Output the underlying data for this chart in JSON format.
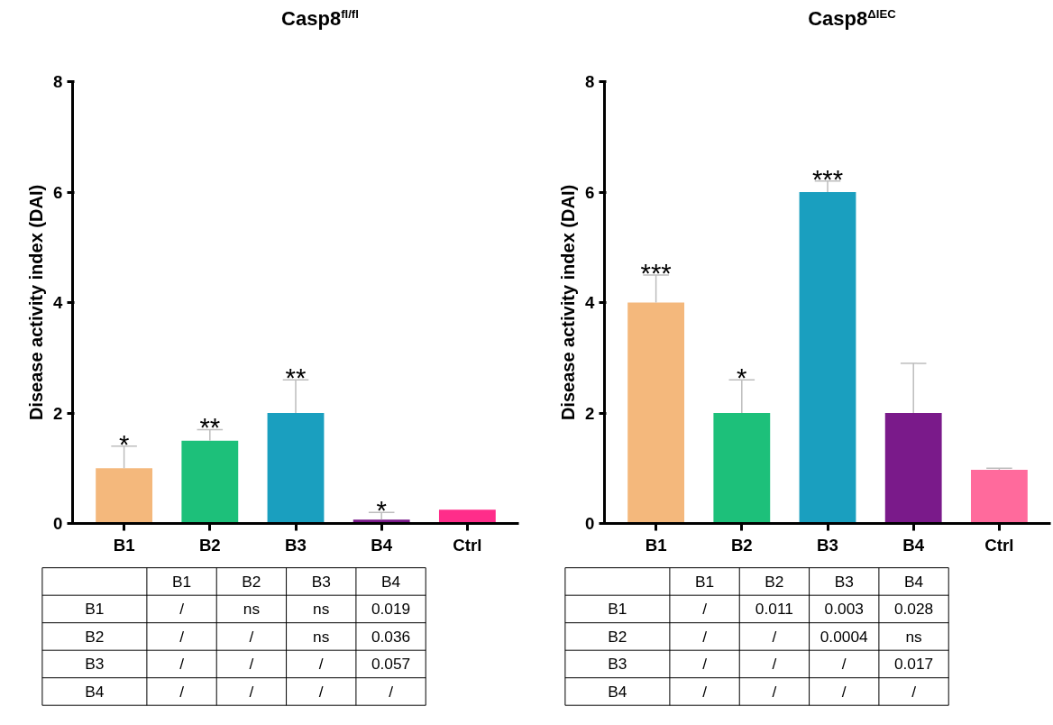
{
  "chart_data": [
    {
      "type": "bar",
      "title": "Casp8$^{fl/fl}$",
      "ylabel": "Disease activity index (DAI)",
      "categories": [
        "B1",
        "B2",
        "B3",
        "B4",
        "Ctrl"
      ],
      "values": [
        1.0,
        1.5,
        2.0,
        0.07,
        0.25
      ],
      "colors": [
        "#f4b87c",
        "#1dc07a",
        "#1a9fbf",
        "#7a1a8a",
        "#ff2d8a"
      ],
      "errors": [
        [
          1.0,
          1.4
        ],
        [
          1.5,
          1.7
        ],
        [
          2.0,
          2.6
        ],
        [
          0.07,
          0.2
        ],
        null
      ],
      "ylim": [
        0,
        8
      ],
      "yticks": [
        0,
        2,
        4,
        6,
        8
      ],
      "grid": false,
      "annotations": [
        {
          "text": "*",
          "x": "B1",
          "y": 1.4
        },
        {
          "text": "**",
          "x": "B2",
          "y": 1.7
        },
        {
          "text": "**",
          "x": "B3",
          "y": 2.6
        },
        {
          "text": "*",
          "x": "B4",
          "y": 0.2
        }
      ]
    },
    {
      "type": "bar",
      "title": "Casp8$^{ΔIEC}$",
      "ylabel": "Disease activity index (DAI)",
      "categories": [
        "B1",
        "B2",
        "B3",
        "B4",
        "Ctrl"
      ],
      "values": [
        4.0,
        2.0,
        6.0,
        2.0,
        0.97
      ],
      "colors": [
        "#f4b87c",
        "#1dc07a",
        "#1a9fbf",
        "#7a1a8a",
        "#ff6a9c"
      ],
      "errors": [
        [
          4.0,
          4.5
        ],
        [
          2.0,
          2.6
        ],
        [
          6.0,
          6.2
        ],
        [
          2.0,
          2.9
        ],
        [
          0.97,
          1.0
        ]
      ],
      "ylim": [
        0,
        8
      ],
      "yticks": [
        0,
        2,
        4,
        6,
        8
      ],
      "grid": false,
      "annotations": [
        {
          "text": "***",
          "x": "B1",
          "y": 4.5
        },
        {
          "text": "*",
          "x": "B2",
          "y": 2.6
        },
        {
          "text": "***",
          "x": "B3",
          "y": 6.2
        }
      ]
    },
    {
      "type": "heatmap",
      "categories": [
        "B1",
        "B2",
        "B3",
        "B4"
      ],
      "y_categories": [
        "B1",
        "B2",
        "B3",
        "B4"
      ],
      "cells": [
        [
          null,
          null,
          null,
          null
        ],
        [
          null,
          null,
          null,
          null
        ],
        [
          null,
          null,
          null,
          null
        ],
        [
          null,
          null,
          null,
          null
        ]
      ],
      "cell_labels": [
        [
          "/",
          "ns",
          "ns",
          "0.019"
        ],
        [
          "/",
          "/",
          "ns",
          "0.036"
        ],
        [
          "/",
          "/",
          "/",
          "0.057"
        ],
        [
          "/",
          "/",
          "/",
          "/"
        ]
      ]
    },
    {
      "type": "heatmap",
      "categories": [
        "B1",
        "B2",
        "B3",
        "B4"
      ],
      "y_categories": [
        "B1",
        "B2",
        "B3",
        "B4"
      ],
      "cells": [
        [
          null,
          null,
          null,
          null
        ],
        [
          null,
          null,
          null,
          null
        ],
        [
          null,
          null,
          null,
          null
        ],
        [
          null,
          null,
          null,
          null
        ]
      ],
      "cell_labels": [
        [
          "/",
          "0.011",
          "0.003",
          "0.028"
        ],
        [
          "/",
          "/",
          "0.0004",
          "ns"
        ],
        [
          "/",
          "/",
          "/",
          "0.017"
        ],
        [
          "/",
          "/",
          "/",
          "/"
        ]
      ]
    }
  ]
}
